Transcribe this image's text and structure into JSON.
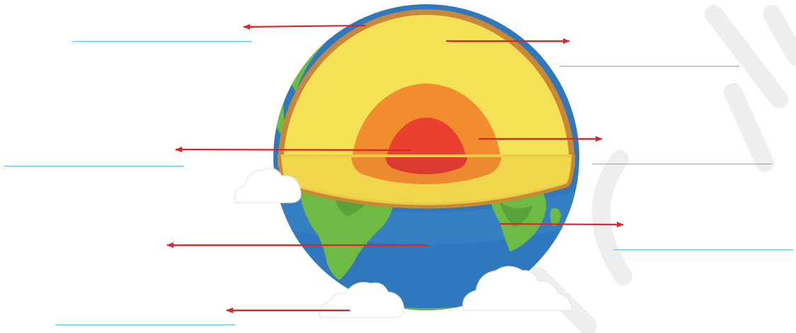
{
  "diagram": {
    "labels": [
      {
        "id": "crust",
        "text": ""
      },
      {
        "id": "mantle",
        "text": ""
      },
      {
        "id": "inner-core",
        "text": ""
      },
      {
        "id": "outer-core",
        "text": ""
      },
      {
        "id": "ocean",
        "text": ""
      },
      {
        "id": "land",
        "text": ""
      },
      {
        "id": "atmosphere",
        "text": ""
      }
    ],
    "watermark": "",
    "colors": {
      "ocean": "#2f78bd",
      "land": "#6dbb45",
      "crust": "#c98838",
      "mantle": "#f4e155",
      "outer_core": "#f28c2e",
      "inner_core": "#ea4030",
      "arrow": "#d9262a",
      "answer_line": "#4fb8e6",
      "cloud": "#ffffff",
      "watermark": "#eeeeee"
    }
  }
}
